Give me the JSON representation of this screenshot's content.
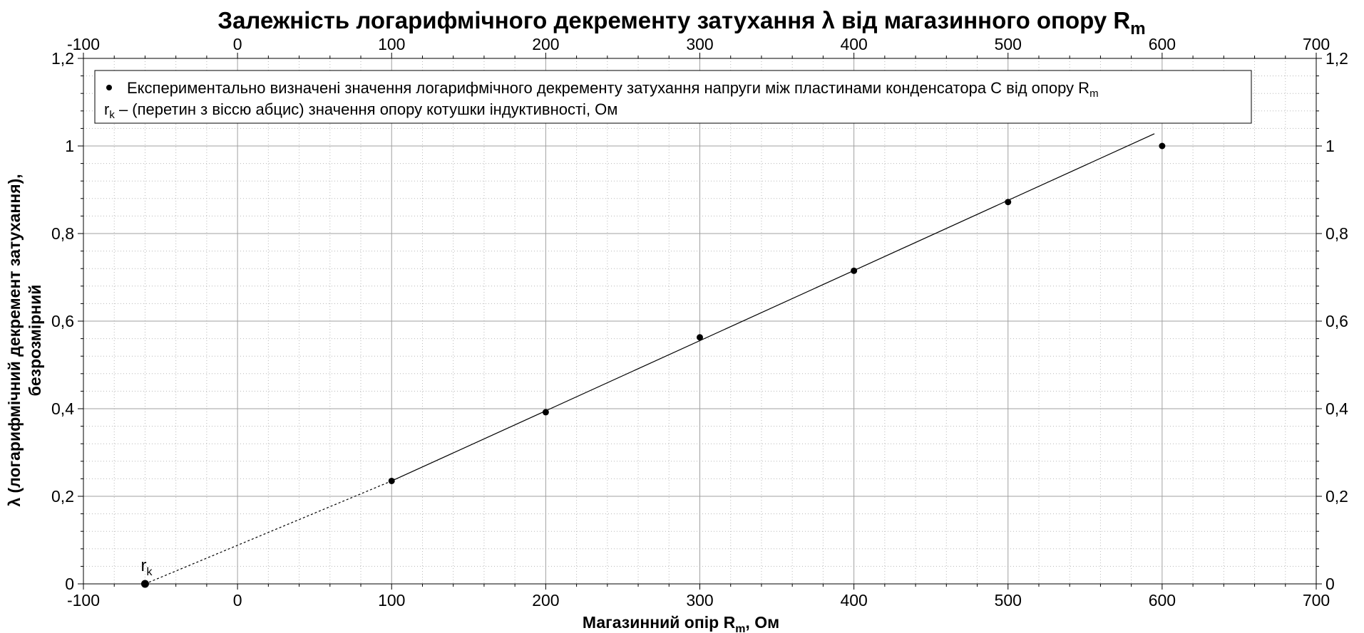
{
  "chart_data": {
    "type": "scatter",
    "title": {
      "main": "Залежність логарифмічного декременту затухання λ від магазинного опору R",
      "sub": "m"
    },
    "xlabel": {
      "main": "Магазинний опір R",
      "sub": "m",
      "tail": ", Ом"
    },
    "ylabel": {
      "line1": "λ (логарифмічний декремент затухання),",
      "line2": "безрозмірний"
    },
    "xlim": [
      -100,
      700
    ],
    "ylim": [
      0,
      1.2
    ],
    "xticks": [
      "-100",
      "0",
      "100",
      "200",
      "300",
      "400",
      "500",
      "600",
      "700"
    ],
    "xtick_values": [
      -100,
      0,
      100,
      200,
      300,
      400,
      500,
      600,
      700
    ],
    "yticks": [
      "0",
      "0,2",
      "0,4",
      "0,6",
      "0,8",
      "1",
      "1,2"
    ],
    "ytick_values": [
      0,
      0.2,
      0.4,
      0.6,
      0.8,
      1.0,
      1.2
    ],
    "grid": true,
    "legend_position": "top-left",
    "series": [
      {
        "name": "Експериментально визначені значення логарифмічного декременту затухання напруги між пластинами конденсатора С від опору R",
        "name_sub": "m",
        "x": [
          100,
          200,
          300,
          400,
          500,
          600
        ],
        "y": [
          0.235,
          0.392,
          0.563,
          0.715,
          0.872,
          1.0
        ]
      },
      {
        "name": "r",
        "name_sub": "k",
        "name_tail": " – (перетин з віссю абцис) значення опору котушки індуктивності, Ом",
        "x": [
          -60
        ],
        "y": [
          0
        ]
      }
    ],
    "fit_line": {
      "x": [
        100,
        595
      ],
      "y": [
        0.235,
        1.028
      ]
    },
    "extrapolation": {
      "x": [
        -60,
        100
      ],
      "y": [
        0,
        0.235
      ]
    },
    "annotation": {
      "text": "r",
      "sub": "k",
      "x": -60,
      "y": 0
    }
  }
}
